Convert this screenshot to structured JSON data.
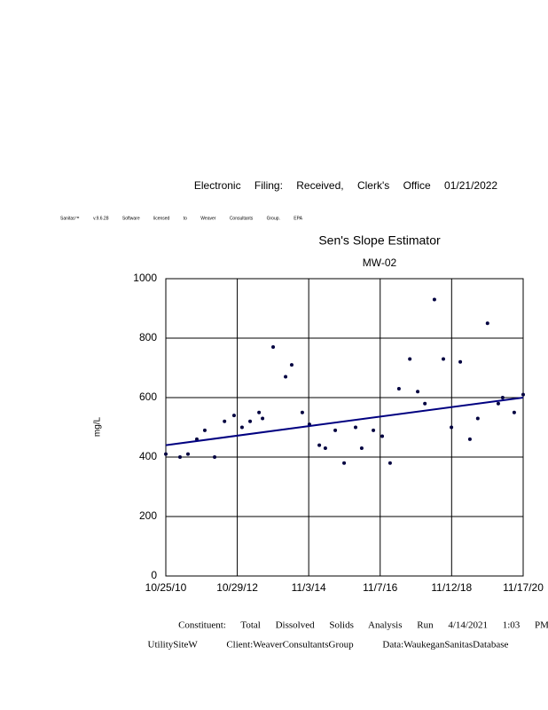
{
  "header": "Electronic Filing: Received, Clerk's Office 01/21/2022",
  "software_note": "Sanitas™ v.9.6.28 Software licensed to Weaver Consultants Group. EPA",
  "chart_data": {
    "type": "scatter",
    "title": "Sen's Slope Estimator",
    "subtitle": "MW-02",
    "y_label": "mg/L",
    "grid": true,
    "xlim": [
      "2010-10-25",
      "2020-11-17"
    ],
    "xticks": [
      {
        "value": "2010-10-25",
        "label": "10/25/10"
      },
      {
        "value": "2012-10-29",
        "label": "10/29/12"
      },
      {
        "value": "2014-11-03",
        "label": "11/3/14"
      },
      {
        "value": "2016-11-07",
        "label": "11/7/16"
      },
      {
        "value": "2018-11-12",
        "label": "11/12/18"
      },
      {
        "value": "2020-11-17",
        "label": "11/17/20"
      }
    ],
    "ylim": [
      0,
      1000
    ],
    "yticks": [
      0,
      200,
      400,
      600,
      800,
      1000
    ],
    "series": [
      {
        "color": "#000040",
        "x": [
          "2010-10-25",
          "2011-03-20",
          "2011-06-10",
          "2011-09-09",
          "2011-11-30",
          "2012-03-10",
          "2012-06-20",
          "2012-09-26",
          "2012-12-17",
          "2013-03-10",
          "2013-06-10",
          "2013-07-16",
          "2013-11-02",
          "2014-03-10",
          "2014-05-12",
          "2014-08-29",
          "2014-11-10",
          "2015-02-20",
          "2015-04-23",
          "2015-08-03",
          "2015-11-02",
          "2016-02-28",
          "2016-05-01",
          "2016-08-29",
          "2016-11-28",
          "2017-02-17",
          "2017-05-19",
          "2017-09-08",
          "2017-11-28",
          "2018-02-10",
          "2018-05-19",
          "2018-08-19",
          "2018-11-10",
          "2019-02-09",
          "2019-05-19",
          "2019-08-08",
          "2019-11-16",
          "2020-03-06",
          "2020-04-20",
          "2020-08-17",
          "2020-11-17"
        ],
        "values": [
          410,
          400,
          410,
          460,
          490,
          400,
          520,
          540,
          500,
          520,
          550,
          530,
          770,
          670,
          710,
          550,
          510,
          440,
          430,
          490,
          380,
          500,
          430,
          490,
          470,
          380,
          630,
          730,
          620,
          580,
          930,
          730,
          500,
          720,
          460,
          530,
          850,
          580,
          600,
          550,
          610
        ]
      }
    ],
    "trend_line": {
      "color": "#000080",
      "x": [
        "2010-10-25",
        "2020-11-17"
      ],
      "values": [
        440,
        600
      ]
    }
  },
  "footer": {
    "line1": "Constituent: Total Dissolved Solids Analysis Run 4/14/2021 1:03 PM",
    "line2": "UtilitySiteW Client:WeaverConsultantsGroup Data:WaukeganSanitasDatabase"
  }
}
